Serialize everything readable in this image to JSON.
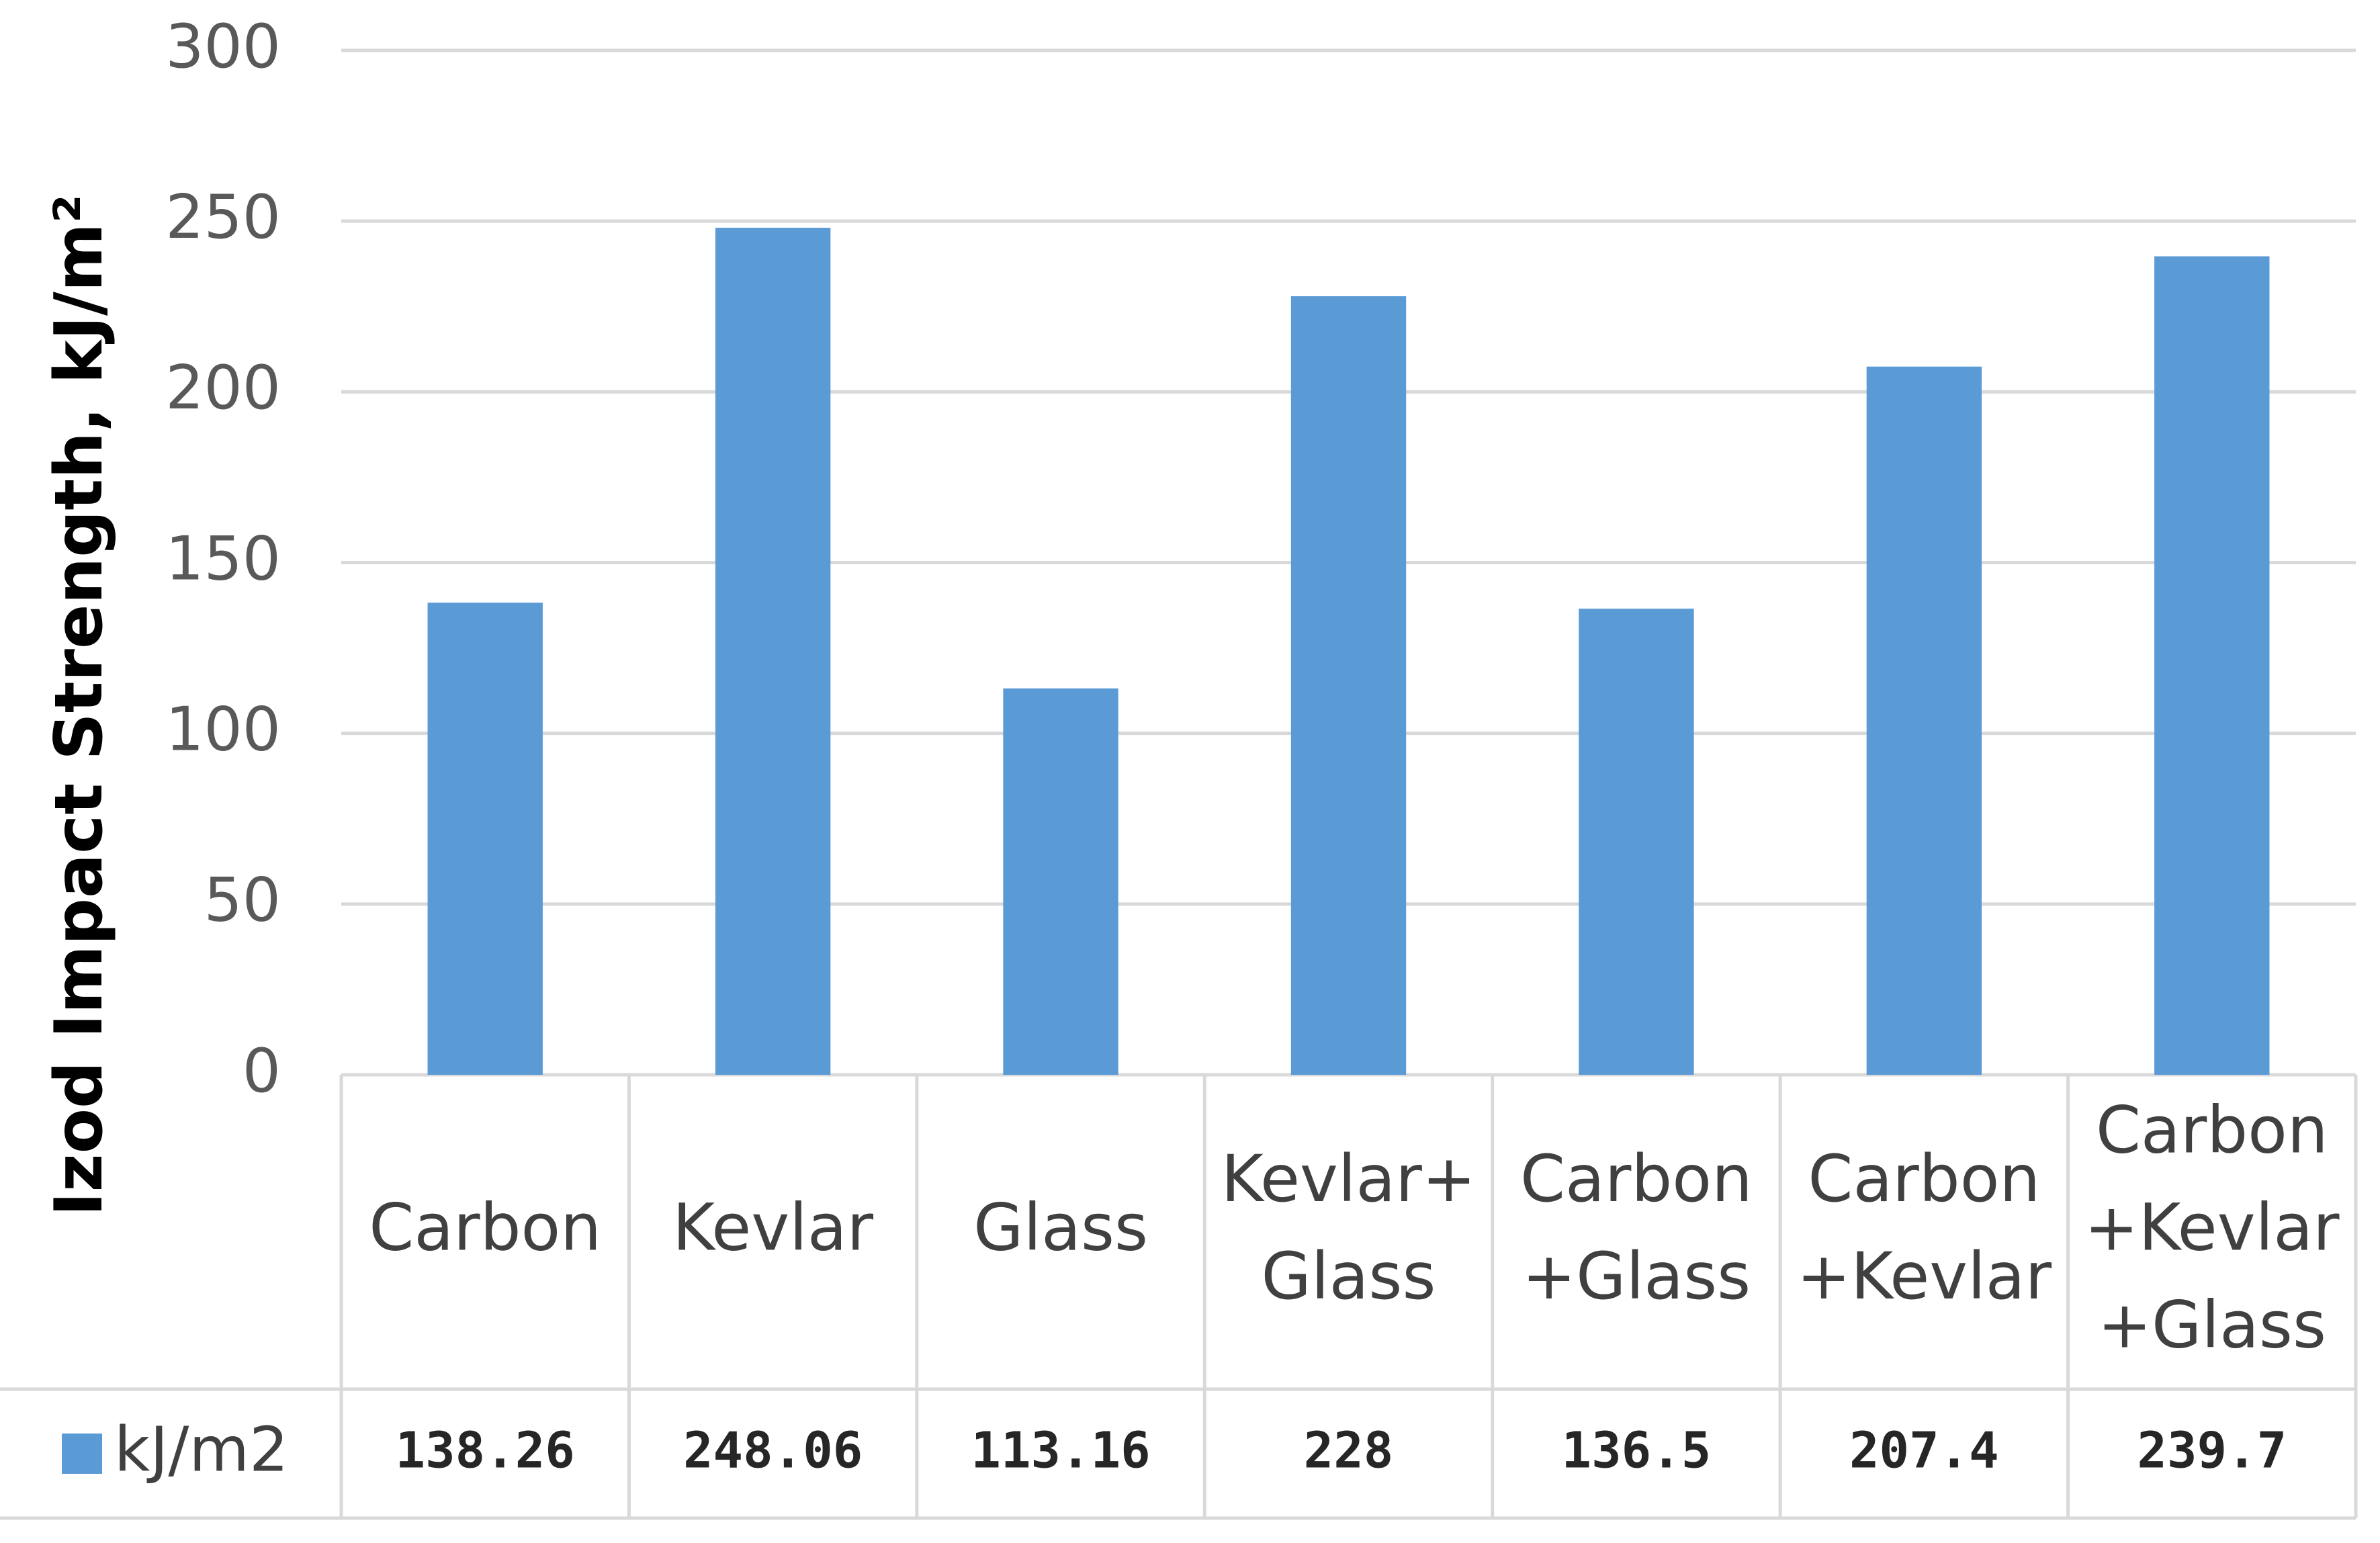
{
  "chart_data": {
    "type": "bar",
    "y_axis_label": "Izod Impact Strength, kJ/m²",
    "categories": [
      [
        "Carbon"
      ],
      [
        "Kevlar"
      ],
      [
        "Glass"
      ],
      [
        "Kevlar+",
        "Glass"
      ],
      [
        "Carbon",
        "+Glass"
      ],
      [
        "Carbon",
        "+Kevlar"
      ],
      [
        "Carbon",
        "+Kevlar",
        "+Glass"
      ]
    ],
    "series": [
      {
        "name": "kJ/m2",
        "color": "#5b9bd5",
        "values": [
          138.26,
          248.06,
          113.16,
          228,
          136.5,
          207.4,
          239.7
        ]
      }
    ],
    "ylim": [
      0,
      300
    ],
    "yticks": [
      0,
      50,
      100,
      150,
      200,
      250,
      300
    ],
    "grid": true,
    "data_table": true
  }
}
